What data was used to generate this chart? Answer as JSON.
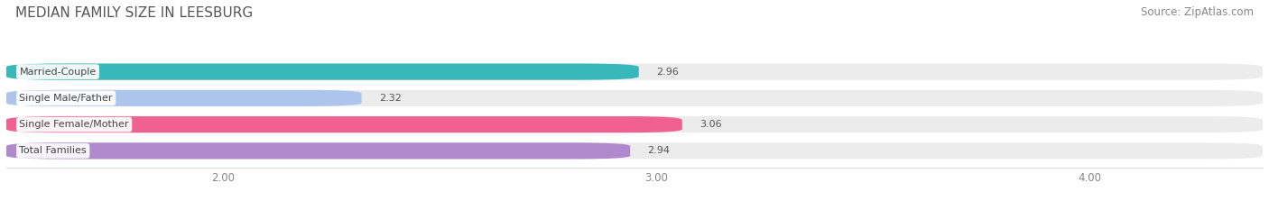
{
  "title": "MEDIAN FAMILY SIZE IN LEESBURG",
  "source": "Source: ZipAtlas.com",
  "categories": [
    "Married-Couple",
    "Single Male/Father",
    "Single Female/Mother",
    "Total Families"
  ],
  "values": [
    2.96,
    2.32,
    3.06,
    2.94
  ],
  "bar_colors": [
    "#38b8b8",
    "#adc4ec",
    "#f06090",
    "#b088cc"
  ],
  "xlim": [
    1.5,
    4.4
  ],
  "xmin": 1.5,
  "xmax": 4.4,
  "xticks": [
    2.0,
    3.0,
    4.0
  ],
  "xtick_labels": [
    "2.00",
    "3.00",
    "4.00"
  ],
  "bar_height": 0.62,
  "background_color": "#ffffff",
  "bar_background_color": "#ececec",
  "title_fontsize": 11,
  "source_fontsize": 8.5,
  "label_fontsize": 8,
  "value_fontsize": 8
}
